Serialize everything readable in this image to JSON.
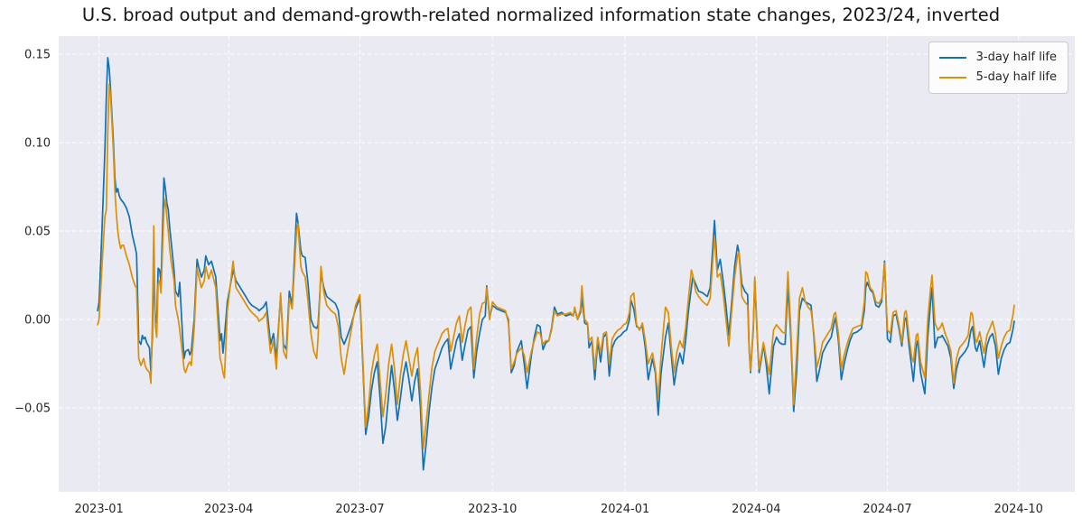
{
  "colors": {
    "plot_background": "#e9eaf2",
    "grid_line": "#ffffff",
    "tick_text": "#262626",
    "title_text": "#151515",
    "blue": "#1272b2",
    "orange": "#de8f05",
    "legend_background": "#ffffff",
    "legend_border": "#cccccc"
  },
  "legend": {
    "items": [
      {
        "label": "3-day half life",
        "color_key": "blue"
      },
      {
        "label": "5-day half life",
        "color_key": "orange"
      }
    ]
  },
  "chart_data": {
    "type": "line",
    "title": "U.S. broad output and demand-growth-related normalized information state changes, 2023/24, inverted",
    "xlabel": "",
    "ylabel": "",
    "grid": true,
    "grid_style": "white dashed on lavender",
    "legend_position": "upper right",
    "x_axis": {
      "unit": "days since 2023-01-01",
      "range_days": [
        -28,
        677
      ],
      "ticks": [
        {
          "label": "2023-01",
          "day": 0
        },
        {
          "label": "2023-04",
          "day": 90
        },
        {
          "label": "2023-07",
          "day": 181
        },
        {
          "label": "2023-10",
          "day": 273
        },
        {
          "label": "2024-01",
          "day": 365
        },
        {
          "label": "2024-04",
          "day": 456
        },
        {
          "label": "2024-07",
          "day": 547
        },
        {
          "label": "2024-10",
          "day": 638
        }
      ]
    },
    "y_axis": {
      "range": [
        -0.0974,
        0.1602
      ],
      "ticks": [
        {
          "value": -0.05,
          "label": "−0.05"
        },
        {
          "value": 0.0,
          "label": "0.00"
        },
        {
          "value": 0.05,
          "label": "0.05"
        },
        {
          "value": 0.1,
          "label": "0.10"
        },
        {
          "value": 0.15,
          "label": "0.15"
        }
      ]
    },
    "x_days": [
      -1,
      0,
      2,
      4,
      5,
      6,
      7,
      8,
      10,
      11,
      12,
      13,
      14,
      15,
      16,
      17,
      19,
      21,
      23,
      25,
      26,
      27.5,
      29,
      30,
      31,
      32,
      33,
      35,
      36,
      37,
      38,
      39,
      40,
      41,
      42,
      43,
      45,
      46,
      47,
      48,
      49,
      50,
      52,
      53,
      55,
      56,
      58,
      59,
      60,
      62,
      63,
      64,
      66,
      68,
      69,
      71,
      73,
      74,
      76,
      78,
      81,
      84,
      85,
      86,
      87,
      89,
      93,
      95,
      98,
      101,
      104,
      106,
      110,
      111,
      114,
      116,
      119,
      121,
      123,
      126,
      128,
      130,
      132,
      134,
      137,
      138,
      140,
      141,
      143,
      145,
      147,
      149,
      151,
      152,
      154,
      156,
      158,
      161,
      164,
      166,
      168,
      170,
      172,
      175,
      178,
      181,
      183,
      185,
      187,
      189,
      191,
      193,
      195,
      197,
      199,
      201,
      203,
      205,
      207,
      209,
      211,
      213,
      215,
      217,
      219,
      221,
      223,
      225,
      227,
      229,
      231,
      233,
      236,
      238,
      240,
      242,
      244,
      246,
      248,
      250,
      252,
      254,
      256,
      258,
      260,
      262,
      264,
      266,
      268,
      269,
      271,
      273,
      276,
      279,
      282,
      284,
      286,
      288,
      290,
      293,
      295,
      297,
      300,
      302,
      304,
      306,
      308,
      310,
      312,
      314,
      316,
      318,
      321,
      324,
      327,
      329,
      330,
      332,
      334,
      335,
      337,
      339,
      340,
      342,
      344,
      346,
      348,
      350,
      352,
      354,
      356,
      358,
      360,
      362,
      364,
      366,
      368,
      369,
      371,
      373,
      375,
      377,
      379,
      381,
      384,
      386,
      388,
      390,
      393,
      395,
      397,
      399,
      401,
      403,
      405,
      407,
      409,
      411,
      412,
      414,
      416,
      419,
      422,
      424,
      427,
      429,
      431,
      433,
      435,
      437,
      439,
      441,
      443,
      444,
      446,
      448,
      450,
      451,
      452,
      454,
      455,
      457,
      458,
      460,
      461,
      463,
      465,
      468,
      470,
      472,
      474,
      476,
      478,
      480,
      482,
      484,
      486,
      488,
      490,
      492,
      494,
      496,
      498,
      500,
      502,
      505,
      508,
      510,
      511,
      513,
      515,
      517,
      519,
      521,
      523,
      526,
      529,
      531,
      532,
      533,
      535,
      537,
      539,
      541,
      543,
      545,
      547,
      549,
      551,
      553,
      555,
      557,
      559,
      560,
      562,
      564,
      565,
      567,
      568,
      570,
      572,
      573,
      575,
      577,
      578,
      580,
      582,
      584,
      585,
      587,
      589,
      591,
      593,
      595,
      597,
      599,
      601,
      603,
      605,
      606,
      608,
      609,
      611,
      613,
      614,
      616,
      618,
      620,
      622,
      624,
      626,
      628,
      630,
      632,
      634,
      635
    ],
    "series": [
      {
        "name": "3-day half life",
        "color_key": "blue",
        "values": [
          0.005,
          0.01,
          0.05,
          0.095,
          0.125,
          0.148,
          0.142,
          0.13,
          0.1,
          0.08,
          0.072,
          0.074,
          0.07,
          0.068,
          0.067,
          0.066,
          0.063,
          0.058,
          0.048,
          0.041,
          0.037,
          -0.012,
          -0.014,
          -0.009,
          -0.011,
          -0.01,
          -0.013,
          -0.016,
          -0.03,
          -0.01,
          0.028,
          0.003,
          -0.002,
          0.029,
          0.028,
          0.021,
          0.08,
          0.074,
          0.066,
          0.062,
          0.052,
          0.044,
          0.028,
          0.016,
          0.013,
          0.021,
          -0.01,
          -0.022,
          -0.018,
          -0.017,
          -0.02,
          -0.018,
          0.0,
          0.034,
          0.03,
          0.024,
          0.028,
          0.036,
          0.031,
          0.033,
          0.024,
          -0.012,
          -0.008,
          -0.019,
          -0.01,
          0.01,
          0.028,
          0.022,
          0.018,
          0.014,
          0.01,
          0.008,
          0.006,
          0.005,
          0.007,
          0.01,
          -0.014,
          -0.008,
          -0.022,
          0.013,
          -0.014,
          -0.017,
          0.016,
          0.008,
          0.06,
          0.055,
          0.039,
          0.036,
          0.035,
          0.02,
          0.0,
          -0.004,
          -0.005,
          -0.003,
          0.026,
          0.018,
          0.013,
          0.011,
          0.009,
          0.005,
          -0.01,
          -0.014,
          -0.01,
          -0.003,
          0.006,
          0.012,
          -0.025,
          -0.065,
          -0.055,
          -0.04,
          -0.03,
          -0.024,
          -0.045,
          -0.07,
          -0.06,
          -0.042,
          -0.026,
          -0.04,
          -0.057,
          -0.045,
          -0.032,
          -0.024,
          -0.034,
          -0.046,
          -0.035,
          -0.028,
          -0.05,
          -0.085,
          -0.07,
          -0.052,
          -0.038,
          -0.028,
          -0.021,
          -0.016,
          -0.013,
          -0.011,
          -0.028,
          -0.02,
          -0.012,
          -0.008,
          -0.023,
          -0.014,
          -0.006,
          -0.004,
          -0.033,
          -0.018,
          -0.008,
          0.0,
          0.002,
          0.019,
          0.001,
          0.008,
          0.006,
          0.005,
          0.004,
          0.0,
          -0.03,
          -0.026,
          -0.018,
          -0.012,
          -0.025,
          -0.039,
          -0.02,
          -0.01,
          -0.003,
          -0.004,
          -0.017,
          -0.013,
          -0.012,
          -0.005,
          0.007,
          0.003,
          0.004,
          0.002,
          0.003,
          0.002,
          0.006,
          0.0,
          0.004,
          0.012,
          -0.002,
          -0.003,
          -0.016,
          -0.012,
          -0.034,
          -0.012,
          -0.024,
          -0.01,
          -0.008,
          -0.032,
          -0.016,
          -0.012,
          -0.01,
          -0.009,
          -0.007,
          -0.006,
          0.0,
          0.011,
          0.006,
          -0.004,
          -0.005,
          -0.004,
          -0.016,
          -0.034,
          -0.022,
          -0.03,
          -0.054,
          -0.03,
          -0.01,
          -0.002,
          -0.02,
          -0.037,
          -0.026,
          -0.019,
          -0.025,
          -0.012,
          0.005,
          0.018,
          0.024,
          0.02,
          0.016,
          0.015,
          0.013,
          0.018,
          0.056,
          0.028,
          0.034,
          0.022,
          0.008,
          -0.009,
          0.01,
          0.03,
          0.042,
          0.038,
          0.02,
          0.016,
          0.014,
          -0.015,
          -0.03,
          -0.005,
          0.022,
          -0.015,
          -0.03,
          -0.02,
          -0.014,
          -0.026,
          -0.042,
          -0.015,
          -0.01,
          -0.013,
          -0.014,
          -0.014,
          0.019,
          -0.01,
          -0.052,
          -0.03,
          0.005,
          0.012,
          0.01,
          0.009,
          0.008,
          -0.01,
          -0.035,
          -0.028,
          -0.019,
          -0.014,
          -0.01,
          -0.002,
          0.001,
          -0.012,
          -0.034,
          -0.025,
          -0.018,
          -0.012,
          -0.008,
          -0.007,
          -0.005,
          0.005,
          0.018,
          0.021,
          0.017,
          0.015,
          0.008,
          0.007,
          0.01,
          0.033,
          -0.011,
          -0.013,
          0.002,
          0.003,
          -0.005,
          -0.015,
          0.0,
          0.001,
          -0.015,
          -0.028,
          -0.035,
          -0.015,
          -0.012,
          -0.03,
          -0.038,
          -0.042,
          -0.01,
          0.01,
          0.018,
          -0.016,
          -0.01,
          -0.01,
          -0.009,
          -0.012,
          -0.015,
          -0.022,
          -0.039,
          -0.028,
          -0.022,
          -0.02,
          -0.018,
          -0.015,
          -0.006,
          -0.004,
          -0.016,
          -0.018,
          -0.012,
          -0.022,
          -0.027,
          -0.015,
          -0.01,
          -0.008,
          -0.015,
          -0.031,
          -0.022,
          -0.017,
          -0.014,
          -0.013,
          -0.006,
          -0.001
        ]
      },
      {
        "name": "5-day half life",
        "color_key": "orange",
        "values": [
          -0.003,
          0.0,
          0.03,
          0.058,
          0.062,
          0.105,
          0.133,
          0.127,
          0.095,
          0.073,
          0.06,
          0.05,
          0.044,
          0.04,
          0.042,
          0.042,
          0.036,
          0.031,
          0.024,
          0.019,
          0.018,
          -0.022,
          -0.026,
          -0.024,
          -0.022,
          -0.026,
          -0.028,
          -0.03,
          -0.036,
          0.0,
          0.053,
          -0.003,
          -0.01,
          0.02,
          0.022,
          0.015,
          0.062,
          0.068,
          0.058,
          0.05,
          0.04,
          0.033,
          0.022,
          0.008,
          0.0,
          -0.006,
          -0.02,
          -0.028,
          -0.03,
          -0.025,
          -0.024,
          -0.026,
          -0.005,
          0.029,
          0.025,
          0.018,
          0.022,
          0.03,
          0.023,
          0.028,
          0.018,
          -0.022,
          -0.025,
          -0.03,
          -0.033,
          0.005,
          0.033,
          0.018,
          0.014,
          0.01,
          0.006,
          0.004,
          0.001,
          -0.001,
          0.001,
          0.004,
          -0.019,
          -0.012,
          -0.028,
          0.015,
          -0.018,
          -0.022,
          0.012,
          0.006,
          0.05,
          0.054,
          0.03,
          0.027,
          0.024,
          0.01,
          -0.008,
          -0.018,
          -0.022,
          -0.01,
          0.03,
          0.015,
          0.008,
          0.005,
          0.003,
          -0.004,
          -0.022,
          -0.031,
          -0.02,
          -0.006,
          0.008,
          0.014,
          -0.022,
          -0.061,
          -0.048,
          -0.03,
          -0.02,
          -0.014,
          -0.035,
          -0.055,
          -0.042,
          -0.025,
          -0.014,
          -0.028,
          -0.048,
          -0.032,
          -0.02,
          -0.012,
          -0.022,
          -0.032,
          -0.022,
          -0.016,
          -0.04,
          -0.073,
          -0.058,
          -0.042,
          -0.027,
          -0.018,
          -0.012,
          -0.008,
          -0.006,
          -0.005,
          -0.018,
          -0.01,
          -0.002,
          0.002,
          -0.013,
          -0.003,
          0.005,
          0.007,
          -0.028,
          -0.01,
          0.003,
          0.009,
          0.01,
          0.018,
          0.0,
          0.01,
          0.007,
          0.006,
          0.005,
          -0.002,
          -0.028,
          -0.024,
          -0.019,
          -0.016,
          -0.02,
          -0.03,
          -0.018,
          -0.012,
          -0.007,
          -0.008,
          -0.014,
          -0.012,
          -0.012,
          -0.006,
          0.005,
          0.002,
          0.003,
          0.003,
          0.004,
          0.002,
          0.007,
          0.0,
          0.006,
          0.019,
          0.0,
          -0.002,
          -0.012,
          -0.01,
          -0.028,
          -0.01,
          -0.019,
          -0.008,
          -0.007,
          -0.025,
          -0.011,
          -0.008,
          -0.006,
          -0.005,
          -0.003,
          -0.002,
          0.004,
          0.013,
          0.015,
          -0.003,
          -0.006,
          -0.002,
          -0.012,
          -0.025,
          -0.019,
          -0.028,
          -0.044,
          -0.02,
          0.007,
          0.004,
          -0.015,
          -0.03,
          -0.018,
          -0.012,
          -0.016,
          -0.005,
          0.012,
          0.028,
          0.025,
          0.016,
          0.013,
          0.01,
          0.008,
          0.012,
          0.047,
          0.024,
          0.026,
          0.015,
          0.0,
          -0.015,
          0.005,
          0.024,
          0.036,
          0.038,
          0.013,
          0.01,
          0.008,
          -0.017,
          -0.029,
          -0.003,
          0.024,
          -0.013,
          -0.028,
          -0.018,
          -0.013,
          -0.022,
          -0.031,
          -0.006,
          -0.003,
          -0.005,
          -0.007,
          -0.008,
          0.027,
          -0.005,
          -0.048,
          -0.02,
          0.012,
          0.018,
          0.01,
          0.007,
          0.005,
          -0.008,
          -0.027,
          -0.021,
          -0.013,
          -0.009,
          -0.005,
          0.003,
          0.004,
          -0.008,
          -0.028,
          -0.02,
          -0.014,
          -0.009,
          -0.005,
          -0.004,
          -0.003,
          0.01,
          0.027,
          0.026,
          0.018,
          0.016,
          0.01,
          0.009,
          0.012,
          0.032,
          -0.006,
          -0.008,
          0.004,
          0.005,
          -0.003,
          -0.013,
          0.004,
          0.005,
          -0.01,
          -0.022,
          -0.024,
          -0.009,
          -0.008,
          -0.024,
          -0.03,
          -0.033,
          0.0,
          0.018,
          0.025,
          -0.002,
          -0.006,
          -0.004,
          -0.002,
          -0.008,
          -0.012,
          -0.018,
          -0.036,
          -0.022,
          -0.016,
          -0.014,
          -0.012,
          -0.009,
          0.004,
          0.003,
          -0.011,
          -0.013,
          -0.007,
          -0.015,
          -0.019,
          -0.009,
          -0.005,
          -0.001,
          -0.008,
          -0.022,
          -0.015,
          -0.01,
          -0.007,
          -0.006,
          0.002,
          0.008
        ]
      }
    ]
  }
}
